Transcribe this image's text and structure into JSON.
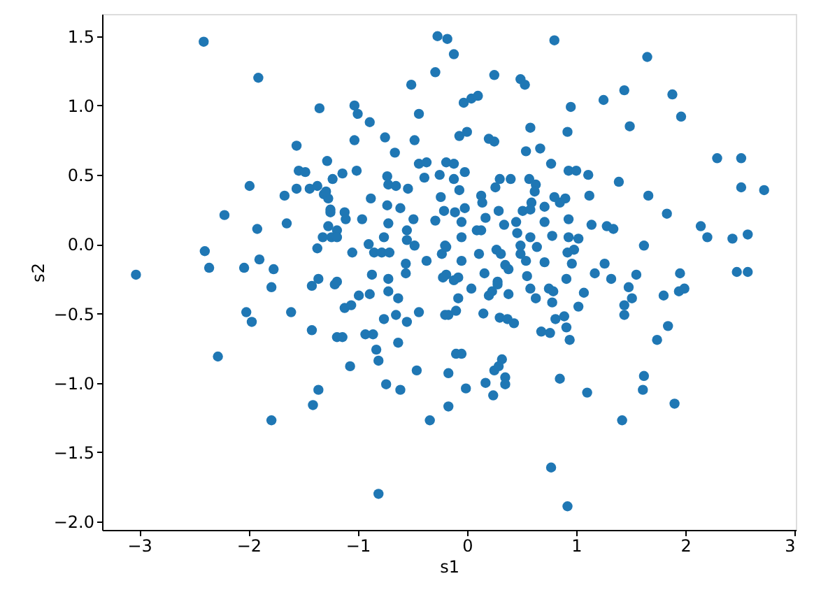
{
  "chart_data": {
    "type": "scatter",
    "xlabel": "s1",
    "ylabel": "s2",
    "marker": "circle",
    "grid": false,
    "xlim": [
      -3.34,
      3.01
    ],
    "ylim": [
      -2.06,
      1.66
    ],
    "xticks": [
      {
        "value": -3,
        "label": "−3"
      },
      {
        "value": -2,
        "label": "−2"
      },
      {
        "value": -1,
        "label": "−1"
      },
      0,
      1,
      2,
      3
    ],
    "yticks": [
      {
        "value": -2,
        "label": "−2.0"
      },
      {
        "value": -1.5,
        "label": "−1.5"
      },
      {
        "value": -1,
        "label": "−1.0"
      },
      {
        "value": -0.5,
        "label": "−0.5"
      },
      {
        "value": 0,
        "label": "0.0"
      },
      {
        "value": 0.5,
        "label": "0.5"
      },
      {
        "value": 1,
        "label": "1.0"
      },
      {
        "value": 1.5,
        "label": "1.5"
      }
    ],
    "series": [
      {
        "color": "#1f77b4",
        "x": [
          -2.41,
          -1.91,
          -1.35,
          -1.56,
          -1.28,
          -1.54,
          -1.48,
          -1.23,
          -1.99,
          -1.67,
          -1.56,
          -1.44,
          -1.37,
          -1.31,
          -1.27,
          -2.22,
          -1.92,
          -1.65,
          -1.27,
          -1.32,
          -1.37,
          -2.4,
          -2.36,
          -1.9,
          -2.04,
          -1.77,
          -3.03,
          -1.25,
          -1.24,
          -1.79,
          -1.42,
          -1.36,
          -1.21,
          -2.02,
          -1.97,
          -1.61,
          -1.42,
          -2.28,
          -1.36,
          -1.41,
          -1.79,
          -1.19,
          -0.27,
          -0.18,
          -0.12,
          -0.29,
          -0.51,
          0.25,
          0.49,
          0.53,
          0.8,
          -0.03,
          0.04,
          0.1,
          -0.44,
          -1.03,
          -1.0,
          -0.89,
          0.95,
          0.58,
          0.92,
          -1.03,
          -0.75,
          -0.48,
          -0.07,
          0.0,
          0.2,
          0.25,
          0.54,
          0.67,
          0.77,
          0.93,
          -0.66,
          -0.44,
          -0.37,
          -0.19,
          -0.12,
          -0.02,
          -1.01,
          -1.14,
          -0.73,
          -0.39,
          -0.25,
          -0.12,
          0.3,
          0.4,
          0.57,
          -0.72,
          -0.65,
          -0.54,
          -0.07,
          0.26,
          0.63,
          0.62,
          -1.29,
          -0.88,
          -0.24,
          0.13,
          0.14,
          0.8,
          0.9,
          0.85,
          0.59,
          -0.73,
          -0.61,
          -0.21,
          -0.11,
          -0.02,
          0.29,
          0.51,
          0.58,
          0.71,
          -1.25,
          -1.12,
          -1.11,
          -0.96,
          -0.49,
          -0.29,
          -0.05,
          0.17,
          0.34,
          0.45,
          0.71,
          0.93,
          -1.19,
          -0.72,
          -0.55,
          0.09,
          0.13,
          0.46,
          0.58,
          0.78,
          0.93,
          -1.19,
          -0.76,
          -0.55,
          -0.05,
          -0.9,
          -0.85,
          -0.78,
          -0.71,
          -0.48,
          -0.2,
          0.11,
          0.27,
          0.31,
          0.49,
          0.49,
          0.64,
          0.92,
          -1.05,
          -0.23,
          -0.19,
          -0.56,
          -0.37,
          -0.05,
          0.35,
          0.38,
          0.54,
          0.71,
          -0.87,
          -0.72,
          -0.56,
          -0.19,
          -0.22,
          -0.08,
          0.16,
          0.28,
          0.55,
          0.91,
          -1.19,
          -0.72,
          -0.63,
          -0.99,
          -0.89,
          -1.12,
          -1.06,
          -0.76,
          -0.65,
          -0.55,
          -0.44,
          -1.14,
          -0.93,
          -0.86,
          -0.63,
          -0.83,
          -0.81,
          -1.07,
          -0.74,
          -0.61,
          -0.46,
          -0.34,
          -0.81,
          -0.12,
          -0.08,
          -0.17,
          -0.1,
          0.04,
          0.15,
          0.2,
          0.23,
          0.28,
          0.38,
          0.3,
          0.37,
          0.43,
          -0.1,
          -0.05,
          -0.17,
          -0.01,
          -0.17,
          0.17,
          0.24,
          0.25,
          0.32,
          0.29,
          0.35,
          0.35,
          0.58,
          0.63,
          0.75,
          0.79,
          0.78,
          0.68,
          0.76,
          0.81,
          0.89,
          0.91,
          0.94,
          0.85,
          0.77,
          0.92,
          -0.2,
          1.07,
          1.02,
          1.1,
          1.32,
          1.48,
          1.51,
          1.44,
          1.44,
          1.55,
          1.8,
          1.94,
          1.99,
          1.95,
          1.84,
          1.74,
          1.62,
          1.61,
          1.9,
          1.42,
          1.17,
          2.47,
          2.57,
          1.65,
          1.44,
          1.25,
          1.88,
          1.96,
          1.49,
          2.29,
          2.51,
          2.51,
          2.72,
          1.0,
          1.11,
          1.39,
          1.12,
          1.66,
          1.83,
          1.14,
          1.28,
          1.34,
          2.14,
          2.2,
          2.43,
          2.57,
          1.02,
          0.98,
          0.96,
          1.62,
          1.26
        ],
        "values": [
          1.46,
          1.2,
          0.98,
          0.71,
          0.6,
          0.53,
          0.52,
          0.47,
          0.42,
          0.35,
          0.4,
          0.4,
          0.42,
          0.36,
          0.33,
          0.21,
          0.11,
          0.15,
          0.13,
          0.05,
          -0.03,
          -0.05,
          -0.17,
          -0.11,
          -0.17,
          -0.18,
          -0.22,
          0.25,
          0.05,
          -0.31,
          -0.3,
          -0.25,
          -0.29,
          -0.49,
          -0.56,
          -0.49,
          -0.62,
          -0.81,
          -1.05,
          -1.16,
          -1.27,
          -0.67,
          1.5,
          1.48,
          1.37,
          1.24,
          1.15,
          1.22,
          1.19,
          1.15,
          1.47,
          1.02,
          1.05,
          1.07,
          0.94,
          1.0,
          0.94,
          0.88,
          0.99,
          0.84,
          0.81,
          0.75,
          0.77,
          0.75,
          0.78,
          0.81,
          0.76,
          0.74,
          0.67,
          0.69,
          0.58,
          0.53,
          0.66,
          0.58,
          0.59,
          0.59,
          0.58,
          0.52,
          0.53,
          0.51,
          0.49,
          0.48,
          0.5,
          0.47,
          0.47,
          0.47,
          0.47,
          0.43,
          0.42,
          0.4,
          0.39,
          0.41,
          0.43,
          0.38,
          0.38,
          0.33,
          0.34,
          0.35,
          0.3,
          0.34,
          0.33,
          0.3,
          0.3,
          0.28,
          0.26,
          0.24,
          0.23,
          0.26,
          0.24,
          0.24,
          0.25,
          0.27,
          0.23,
          0.23,
          0.18,
          0.18,
          0.18,
          0.17,
          0.16,
          0.19,
          0.14,
          0.16,
          0.16,
          0.18,
          0.1,
          0.15,
          0.1,
          0.1,
          0.1,
          0.08,
          0.05,
          0.06,
          0.05,
          0.05,
          0.05,
          0.03,
          0.05,
          0.0,
          -0.06,
          -0.06,
          -0.06,
          -0.01,
          -0.01,
          -0.07,
          -0.04,
          -0.07,
          -0.01,
          -0.07,
          -0.02,
          -0.06,
          -0.06,
          -0.07,
          -0.02,
          -0.14,
          -0.12,
          -0.12,
          -0.15,
          -0.18,
          -0.12,
          -0.13,
          -0.22,
          -0.25,
          -0.21,
          -0.22,
          -0.24,
          -0.24,
          -0.21,
          -0.27,
          -0.23,
          -0.25,
          -0.27,
          -0.34,
          -0.39,
          -0.37,
          -0.36,
          -0.46,
          -0.44,
          -0.54,
          -0.51,
          -0.56,
          -0.49,
          -0.67,
          -0.65,
          -0.65,
          -0.71,
          -0.76,
          -0.84,
          -0.88,
          -1.01,
          -1.05,
          -0.91,
          -1.27,
          -1.8,
          -0.26,
          -0.39,
          -0.51,
          -0.48,
          -0.32,
          -0.5,
          -0.37,
          -0.34,
          -0.29,
          -0.36,
          -0.53,
          -0.54,
          -0.57,
          -0.79,
          -0.79,
          -0.93,
          -1.04,
          -1.17,
          -1.0,
          -1.09,
          -0.91,
          -0.83,
          -0.88,
          -0.96,
          -1.01,
          -0.32,
          -0.39,
          -0.32,
          -0.34,
          -0.42,
          -0.63,
          -0.64,
          -0.54,
          -0.52,
          -0.6,
          -0.69,
          -0.97,
          -1.61,
          -1.89,
          -0.51,
          -0.35,
          -0.45,
          -1.07,
          -0.25,
          -0.31,
          -0.39,
          -0.44,
          -0.51,
          -0.22,
          -0.37,
          -0.34,
          -0.32,
          -0.21,
          -0.59,
          -0.69,
          -0.95,
          -1.05,
          -1.15,
          -1.27,
          -0.21,
          -0.2,
          -0.2,
          1.35,
          1.11,
          1.04,
          1.08,
          0.92,
          0.85,
          0.62,
          0.62,
          0.41,
          0.39,
          0.53,
          0.5,
          0.45,
          0.35,
          0.35,
          0.22,
          0.14,
          0.13,
          0.11,
          0.13,
          0.05,
          0.04,
          0.07,
          0.04,
          -0.04,
          -0.14,
          -0.01,
          -0.14
        ]
      }
    ]
  }
}
